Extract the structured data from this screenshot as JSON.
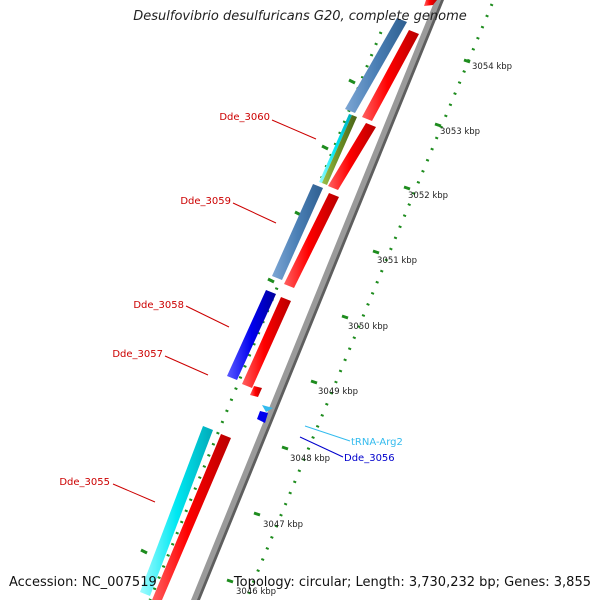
{
  "title": "Desulfovibrio desulfuricans G20, complete genome",
  "scale_ticks": [
    "3054 kbp",
    "3053 kbp",
    "3052 kbp",
    "3051 kbp",
    "3050 kbp",
    "3049 kbp",
    "3048 kbp",
    "3047 kbp",
    "3046 kbp"
  ],
  "gene_labels": [
    {
      "text": "Dde_3060",
      "color": "#cc0000"
    },
    {
      "text": "Dde_3059",
      "color": "#cc0000"
    },
    {
      "text": "Dde_3058",
      "color": "#cc0000"
    },
    {
      "text": "Dde_3057",
      "color": "#cc0000"
    },
    {
      "text": "Dde_3055",
      "color": "#cc0000"
    },
    {
      "text": "tRNA-Arg2",
      "color": "#33bbee"
    },
    {
      "text": "Dde_3056",
      "color": "#0000cc"
    }
  ],
  "footer": {
    "accession": "Accession: NC_007519",
    "summary": "Topology: circular; Length: 3,730,232 bp; Genes: 3,855"
  },
  "colors": {
    "cds_forward": "#ff0000",
    "cog_steelblue": "#4a7fb5",
    "cog_cyan": "#00e5f0",
    "cog_blue": "#0000ee",
    "cog_olive": "#6b8e23",
    "trna": "#33bbee",
    "backbone": "#8a8a8a",
    "ticks": "#1e8c1e"
  }
}
